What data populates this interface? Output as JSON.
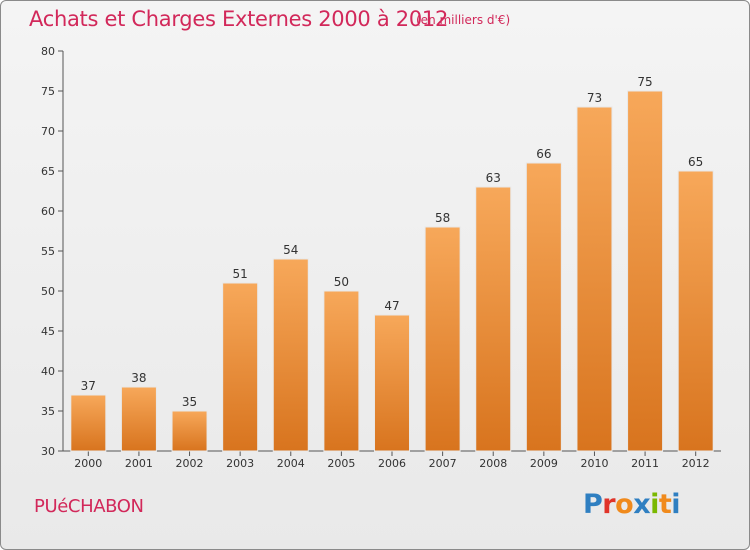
{
  "header": {
    "title": "Achats et Charges Externes 2000 à 2012",
    "unit_note": "(en milliers d'€)"
  },
  "footer": {
    "place": "PUéCHABON",
    "logo_text": "Proxiti"
  },
  "colors": {
    "accent": "#d2285a",
    "bar_light": "#f7a85a",
    "bar_dark": "#d8741e"
  },
  "chart_data": {
    "type": "bar",
    "title": "Achats et Charges Externes 2000 à 2012",
    "subtitle": "(en milliers d'€)",
    "categories": [
      "2000",
      "2001",
      "2002",
      "2003",
      "2004",
      "2005",
      "2006",
      "2007",
      "2008",
      "2009",
      "2010",
      "2011",
      "2012"
    ],
    "values": [
      37,
      38,
      35,
      51,
      54,
      50,
      47,
      58,
      63,
      66,
      73,
      75,
      65
    ],
    "ylim": [
      30,
      80
    ],
    "yticks": [
      30,
      35,
      40,
      45,
      50,
      55,
      60,
      65,
      70,
      75,
      80
    ],
    "grid": false,
    "data_labels": true
  }
}
